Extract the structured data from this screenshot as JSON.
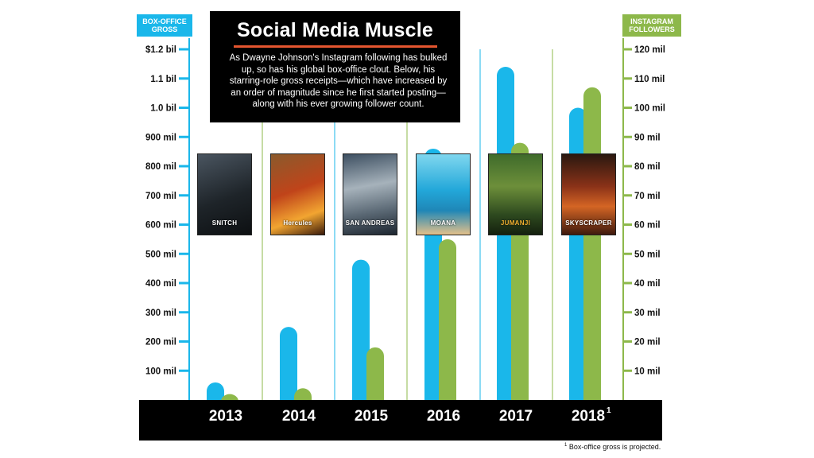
{
  "header": {
    "title": "Social Media Muscle",
    "subtitle": "As Dwayne Johnson's Instagram following has bulked up, so has his global box-office clout. Below, his starring-role gross receipts—which have increased by an order of magnitude since he first started posting—along with his ever growing follower count.",
    "left_axis_label": "BOX-OFFICE GROSS",
    "right_axis_label": "INSTAGRAM FOLLOWERS"
  },
  "posters": [
    {
      "year": "2013",
      "title": "SNITCH"
    },
    {
      "year": "2014",
      "title": "Hercules"
    },
    {
      "year": "2015",
      "title": "SAN ANDREAS"
    },
    {
      "year": "2016",
      "title": "MOANA"
    },
    {
      "year": "2017",
      "title": "JUMANJI"
    },
    {
      "year": "2018",
      "title": "SKYSCRAPER"
    }
  ],
  "footnote": {
    "marker": "1",
    "text": "Box-office gross is projected."
  },
  "colors": {
    "gross": "#1ab7ea",
    "followers": "#8db84a",
    "band": "#000000",
    "divider_light": "#1ab7ea",
    "divider_green": "#8db84a"
  },
  "chart_data": {
    "type": "bar",
    "categories": [
      "2013",
      "2014",
      "2015",
      "2016",
      "2017",
      "2018"
    ],
    "category_superscripts": [
      "",
      "",
      "",
      "",
      "",
      "1"
    ],
    "series": [
      {
        "name": "Box-office gross (mil $)",
        "axis": "left",
        "values": [
          60,
          250,
          480,
          860,
          1140,
          1000
        ]
      },
      {
        "name": "Instagram followers (mil)",
        "axis": "right",
        "values": [
          2,
          4,
          18,
          55,
          88,
          107
        ]
      }
    ],
    "left_axis": {
      "ylim": [
        0,
        1200
      ],
      "ticks": [
        100,
        200,
        300,
        400,
        500,
        600,
        700,
        800,
        900,
        1000,
        1100,
        1200
      ],
      "tick_labels": [
        "100 mil",
        "200 mil",
        "300 mil",
        "400 mil",
        "500 mil",
        "600 mil",
        "700 mil",
        "800 mil",
        "900 mil",
        "1.0 bil",
        "1.1 bil",
        "$1.2 bil"
      ]
    },
    "right_axis": {
      "ylim": [
        0,
        120
      ],
      "ticks": [
        10,
        20,
        30,
        40,
        50,
        60,
        70,
        80,
        90,
        100,
        110,
        120
      ],
      "tick_labels": [
        "10 mil",
        "20 mil",
        "30 mil",
        "40 mil",
        "50 mil",
        "60 mil",
        "70 mil",
        "80 mil",
        "90 mil",
        "100 mil",
        "110 mil",
        "120 mil"
      ]
    },
    "title": "Social Media Muscle"
  }
}
